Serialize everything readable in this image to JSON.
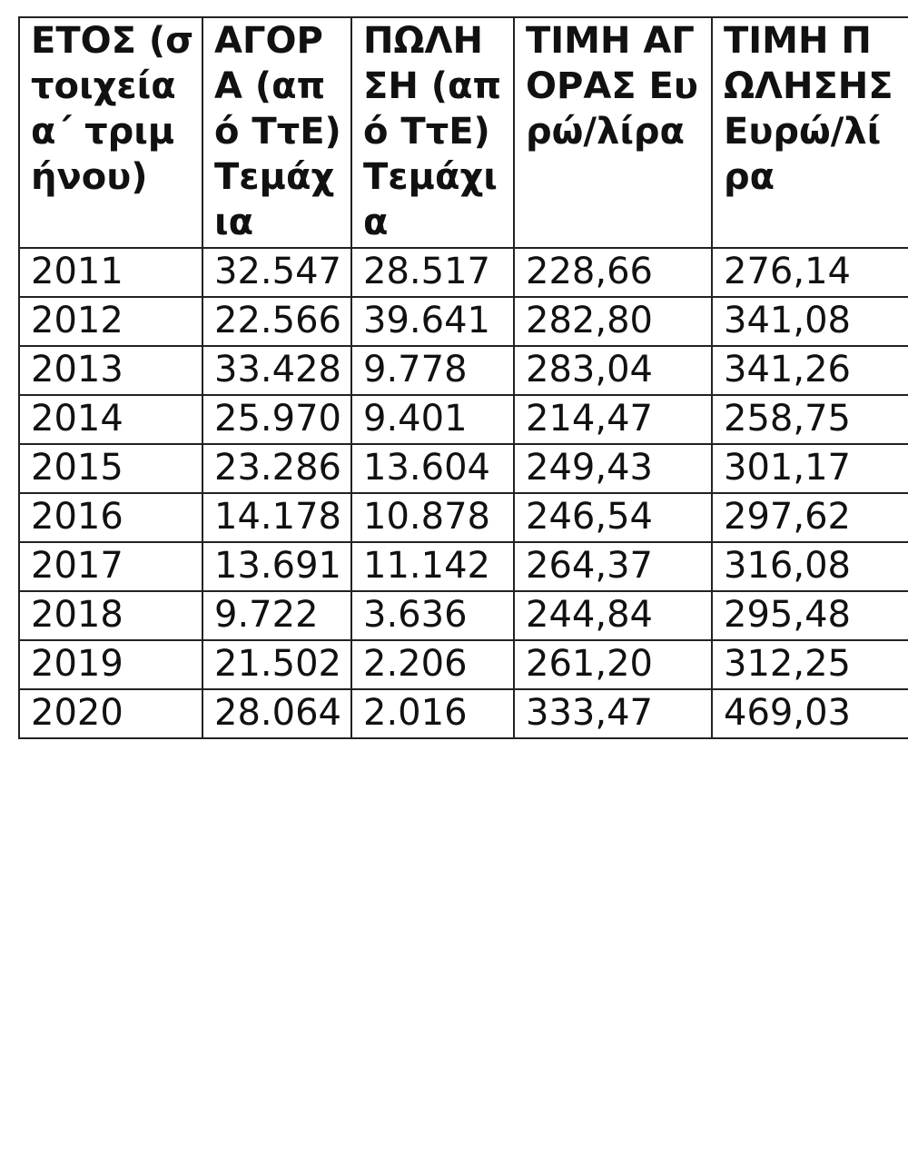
{
  "table": {
    "headers": [
      "ΕΤΟΣ (στοιχεία α΄ τριμήνου)",
      "ΑΓΟΡΑ (από ΤτΕ) Τεμάχια",
      "ΠΩΛΗΣΗ (από ΤτΕ) Τεμάχια",
      "ΤΙΜΗ ΑΓΟΡΑΣ Ευρώ/λίρα",
      "ΤΙΜΗ ΠΩΛΗΣΗΣ Ευρώ/λίρα"
    ],
    "rows": [
      [
        "2011",
        "32.547",
        "28.517",
        "228,66",
        "276,14"
      ],
      [
        "2012",
        "22.566",
        "39.641",
        "282,80",
        "341,08"
      ],
      [
        "2013",
        "33.428",
        "9.778",
        "283,04",
        "341,26"
      ],
      [
        "2014",
        "25.970",
        "9.401",
        "214,47",
        "258,75"
      ],
      [
        "2015",
        "23.286",
        "13.604",
        "249,43",
        "301,17"
      ],
      [
        "2016",
        "14.178",
        "10.878",
        "246,54",
        "297,62"
      ],
      [
        "2017",
        "13.691",
        "11.142",
        "264,37",
        "316,08"
      ],
      [
        "2018",
        "9.722",
        "3.636",
        "244,84",
        "295,48"
      ],
      [
        "2019",
        "21.502",
        "2.206",
        "261,20",
        "312,25"
      ],
      [
        "2020",
        "28.064",
        "2.016",
        "333,47",
        "469,03"
      ]
    ]
  }
}
